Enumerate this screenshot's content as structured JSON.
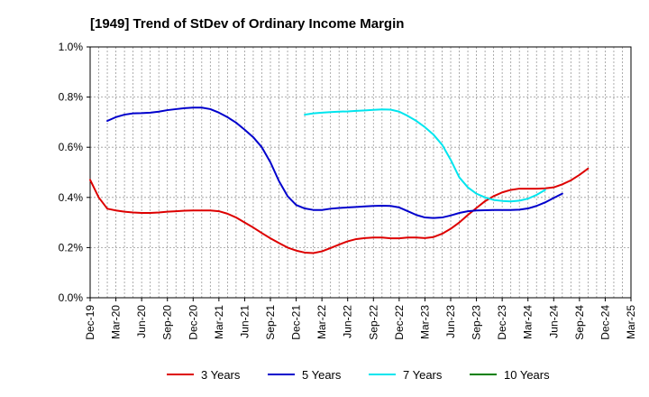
{
  "chart_data": {
    "type": "line",
    "title": "[1949]  Trend of StDev of Ordinary Income Margin",
    "xlabel": "",
    "ylabel": "",
    "ylim": [
      0,
      1.0
    ],
    "y_ticks": [
      "0.0%",
      "0.2%",
      "0.4%",
      "0.6%",
      "0.8%",
      "1.0%"
    ],
    "y_tick_values": [
      0,
      0.2,
      0.4,
      0.6,
      0.8,
      1.0
    ],
    "x_tick_labels": [
      "Dec-19",
      "Mar-20",
      "Jun-20",
      "Sep-20",
      "Dec-20",
      "Mar-21",
      "Jun-21",
      "Sep-21",
      "Dec-21",
      "Mar-22",
      "Jun-22",
      "Sep-22",
      "Dec-22",
      "Mar-23",
      "Jun-23",
      "Sep-23",
      "Dec-23",
      "Mar-24",
      "Jun-24",
      "Sep-24",
      "Dec-24",
      "Mar-25"
    ],
    "grid": true,
    "legend_position": "bottom",
    "series": [
      {
        "name": "3 Years",
        "color": "#dd0000",
        "start_index": 0,
        "values": [
          0.47,
          0.4,
          0.355,
          0.348,
          0.343,
          0.34,
          0.338,
          0.338,
          0.34,
          0.343,
          0.345,
          0.347,
          0.348,
          0.348,
          0.348,
          0.345,
          0.335,
          0.32,
          0.3,
          0.28,
          0.258,
          0.237,
          0.218,
          0.2,
          0.188,
          0.18,
          0.178,
          0.185,
          0.198,
          0.212,
          0.225,
          0.234,
          0.238,
          0.24,
          0.24,
          0.237,
          0.237,
          0.24,
          0.24,
          0.238,
          0.242,
          0.255,
          0.275,
          0.3,
          0.33,
          0.358,
          0.385,
          0.405,
          0.42,
          0.43,
          0.435,
          0.435,
          0.435,
          0.436,
          0.44,
          0.452,
          0.468,
          0.49,
          0.515
        ]
      },
      {
        "name": "5 Years",
        "color": "#0000cc",
        "start_index": 2,
        "values": [
          0.705,
          0.72,
          0.73,
          0.735,
          0.736,
          0.738,
          0.742,
          0.748,
          0.752,
          0.756,
          0.758,
          0.758,
          0.752,
          0.738,
          0.72,
          0.698,
          0.67,
          0.64,
          0.6,
          0.54,
          0.465,
          0.405,
          0.37,
          0.356,
          0.35,
          0.35,
          0.355,
          0.358,
          0.36,
          0.362,
          0.364,
          0.366,
          0.367,
          0.366,
          0.36,
          0.345,
          0.33,
          0.32,
          0.318,
          0.32,
          0.328,
          0.338,
          0.345,
          0.348,
          0.349,
          0.35,
          0.35,
          0.35,
          0.351,
          0.356,
          0.366,
          0.38,
          0.398,
          0.415
        ]
      },
      {
        "name": "7 Years",
        "color": "#00e5ee",
        "start_index": 25,
        "values": [
          0.73,
          0.735,
          0.738,
          0.74,
          0.742,
          0.743,
          0.745,
          0.747,
          0.749,
          0.751,
          0.75,
          0.742,
          0.725,
          0.705,
          0.68,
          0.65,
          0.61,
          0.55,
          0.48,
          0.44,
          0.415,
          0.4,
          0.39,
          0.386,
          0.384,
          0.387,
          0.395,
          0.41,
          0.43
        ]
      },
      {
        "name": "10 Years",
        "color": "#008000",
        "start_index": 0,
        "values": []
      }
    ]
  }
}
